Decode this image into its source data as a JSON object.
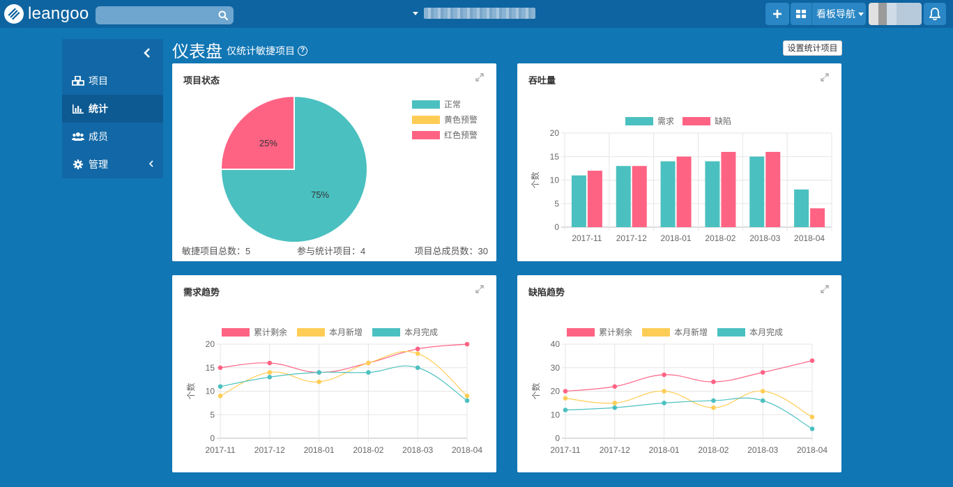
{
  "app": {
    "logo_text": "leangoo"
  },
  "header": {
    "search": {
      "value": "",
      "placeholder": ""
    },
    "project_select": {
      "selected": ""
    },
    "add_label": "+",
    "board_nav_label": "看板导航"
  },
  "sidebar": {
    "items": [
      {
        "label": "项目",
        "icon": "cubes-icon"
      },
      {
        "label": "统计",
        "icon": "bar-chart-icon",
        "active": true
      },
      {
        "label": "成员",
        "icon": "users-icon"
      },
      {
        "label": "管理",
        "icon": "gear-icon"
      }
    ]
  },
  "page": {
    "title": "仪表盘",
    "subtitle": "仅统计敏捷项目",
    "settings_button": "设置统计项目"
  },
  "colors": {
    "teal": "#4bc0c0",
    "pink": "#ff6384",
    "yellow": "#ffcd56",
    "accent": "#1176b4"
  },
  "panels": {
    "project_status": {
      "title": "项目状态",
      "stats": {
        "agile_total": "敏捷项目总数：5",
        "counted": "参与统计项目：4",
        "members_total": "项目总成员数：30"
      }
    },
    "throughput": {
      "title": "吞吐量"
    },
    "req_trend": {
      "title": "需求趋势"
    },
    "defect_trend": {
      "title": "缺陷趋势"
    }
  },
  "chart_data": [
    {
      "type": "pie",
      "labels": [
        "正常",
        "黄色预警",
        "红色预警"
      ],
      "values": [
        75,
        0,
        25
      ],
      "data_labels": [
        "75%",
        "",
        "25%"
      ],
      "colors": [
        "#4bc0c0",
        "#ffcd56",
        "#ff6384"
      ],
      "legend": "right"
    },
    {
      "type": "bar",
      "categories": [
        "2017-11",
        "2017-12",
        "2018-01",
        "2018-02",
        "2018-03",
        "2018-04"
      ],
      "series": [
        {
          "name": "需求",
          "values": [
            11,
            13,
            14,
            14,
            15,
            8
          ],
          "color": "#4bc0c0"
        },
        {
          "name": "缺陷",
          "values": [
            12,
            13,
            15,
            16,
            16,
            4
          ],
          "color": "#ff6384"
        }
      ],
      "ylabel": "个数",
      "ylim": [
        0,
        20
      ],
      "yticks": [
        0,
        5,
        10,
        15,
        20
      ],
      "legend": "top",
      "grid": true
    },
    {
      "type": "line",
      "categories": [
        "2017-11",
        "2017-12",
        "2018-01",
        "2018-02",
        "2018-03",
        "2018-04"
      ],
      "series": [
        {
          "name": "累计剩余",
          "values": [
            15,
            16,
            14,
            16,
            19,
            20
          ],
          "color": "#ff6384"
        },
        {
          "name": "本月新增",
          "values": [
            9,
            14,
            12,
            16,
            18,
            9
          ],
          "color": "#ffcd56"
        },
        {
          "name": "本月完成",
          "values": [
            11,
            13,
            14,
            14,
            15,
            8
          ],
          "color": "#4bc0c0"
        }
      ],
      "ylabel": "个数",
      "ylim": [
        0,
        20
      ],
      "yticks": [
        0,
        5,
        10,
        15,
        20
      ],
      "legend": "top",
      "grid": true
    },
    {
      "type": "line",
      "categories": [
        "2017-11",
        "2017-12",
        "2018-01",
        "2018-02",
        "2018-03",
        "2018-04"
      ],
      "series": [
        {
          "name": "累计剩余",
          "values": [
            20,
            22,
            27,
            24,
            28,
            33
          ],
          "color": "#ff6384"
        },
        {
          "name": "本月新增",
          "values": [
            17,
            15,
            20,
            13,
            20,
            9
          ],
          "color": "#ffcd56"
        },
        {
          "name": "本月完成",
          "values": [
            12,
            13,
            15,
            16,
            16,
            4
          ],
          "color": "#4bc0c0"
        }
      ],
      "ylabel": "个数",
      "ylim": [
        0,
        40
      ],
      "yticks": [
        0,
        10,
        20,
        30,
        40
      ],
      "legend": "top",
      "grid": true
    }
  ]
}
